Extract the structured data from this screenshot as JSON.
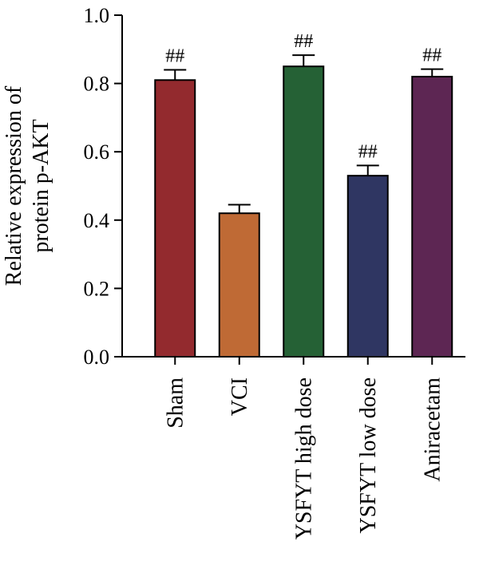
{
  "chart_data": {
    "type": "bar",
    "ylabel_lines": [
      "Relative expression of",
      "protein p-AKT"
    ],
    "xlabel": "",
    "ylim": [
      0,
      1.0
    ],
    "yticks": [
      "0.0",
      "0.2",
      "0.4",
      "0.6",
      "0.8",
      "1.0"
    ],
    "grid": false,
    "categories": [
      "Sham",
      "VCI",
      "YSFYT high dose",
      "YSFYT low dose",
      "Aniracetam"
    ],
    "values": [
      0.81,
      0.42,
      0.85,
      0.53,
      0.82
    ],
    "errors": [
      0.03,
      0.025,
      0.033,
      0.03,
      0.022
    ],
    "annotations": [
      "##",
      "",
      "##",
      "##",
      "##"
    ],
    "colors": [
      "#932a2e",
      "#bf6a35",
      "#256135",
      "#2f3662",
      "#5d2653"
    ]
  }
}
